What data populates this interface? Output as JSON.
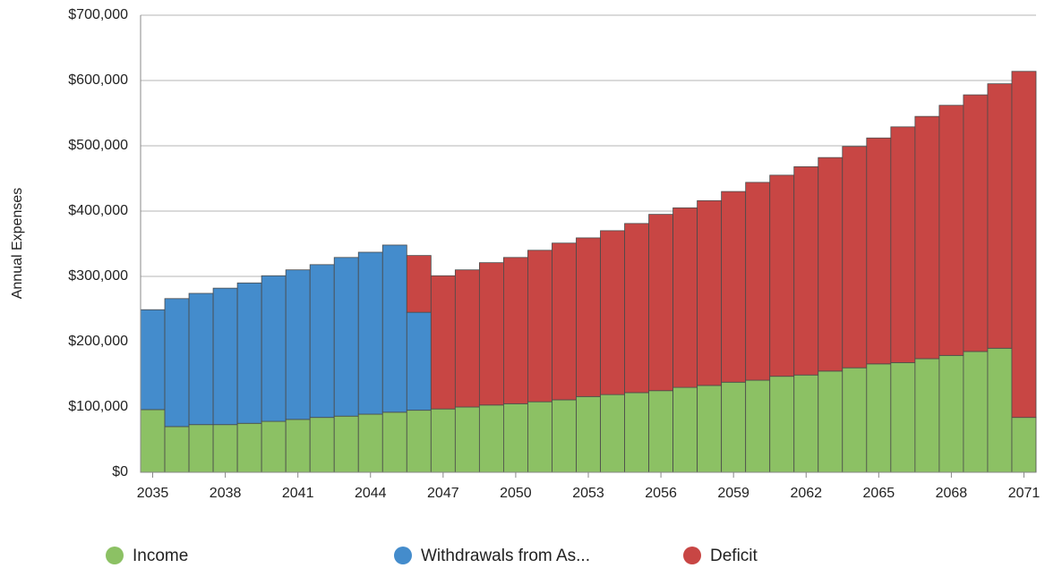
{
  "chart_data": {
    "type": "stacked-bar",
    "ylabel": "Annual Expenses",
    "categories": [
      "2035",
      null,
      null,
      "2038",
      null,
      null,
      "2041",
      null,
      null,
      "2044",
      null,
      null,
      "2047",
      null,
      null,
      "2050",
      null,
      null,
      "2053",
      null,
      null,
      "2056",
      null,
      null,
      "2059",
      null,
      null,
      "2062",
      null,
      null,
      "2065",
      null,
      null,
      "2068",
      null,
      null,
      "2071"
    ],
    "series": [
      {
        "name": "Income",
        "color": "#8cc164",
        "values": [
          96000,
          70000,
          73000,
          73000,
          75000,
          78000,
          81000,
          84000,
          86000,
          89000,
          92000,
          95000,
          97000,
          100000,
          103000,
          105000,
          108000,
          111000,
          116000,
          119000,
          122000,
          125000,
          130000,
          133000,
          138000,
          141000,
          147000,
          149000,
          155000,
          160000,
          166000,
          168000,
          174000,
          179000,
          185000,
          190000,
          84000
        ]
      },
      {
        "name": "Withdrawals from As...",
        "color": "#448ccc",
        "values": [
          153000,
          196000,
          201000,
          209000,
          215000,
          223000,
          229000,
          234000,
          243000,
          248000,
          256000,
          150000,
          0,
          0,
          0,
          0,
          0,
          0,
          0,
          0,
          0,
          0,
          0,
          0,
          0,
          0,
          0,
          0,
          0,
          0,
          0,
          0,
          0,
          0,
          0,
          0,
          0
        ]
      },
      {
        "name": "Deficit",
        "color": "#c84644",
        "values": [
          0,
          0,
          0,
          0,
          0,
          0,
          0,
          0,
          0,
          0,
          0,
          87000,
          204000,
          210000,
          218000,
          224000,
          232000,
          240000,
          243000,
          251000,
          259000,
          270000,
          275000,
          283000,
          292000,
          303000,
          308000,
          319000,
          327000,
          339000,
          346000,
          361000,
          371000,
          383000,
          393000,
          405000,
          530000
        ]
      }
    ],
    "ylim": [
      0,
      700000
    ],
    "yticks": [
      {
        "value": 0,
        "label": "$0"
      },
      {
        "value": 100000,
        "label": "$100,000"
      },
      {
        "value": 200000,
        "label": "$200,000"
      },
      {
        "value": 300000,
        "label": "$300,000"
      },
      {
        "value": 400000,
        "label": "$400,000"
      },
      {
        "value": 500000,
        "label": "$500,000"
      },
      {
        "value": 600000,
        "label": "$600,000"
      },
      {
        "value": 700000,
        "label": "$700,000"
      }
    ],
    "grid": true,
    "legend": "bottom"
  }
}
